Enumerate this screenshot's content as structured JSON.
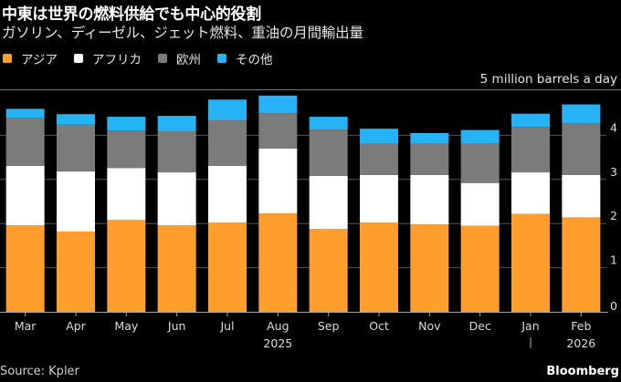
{
  "header": {
    "title": "中東は世界の燃料供給でも中心的役割",
    "subtitle": "ガソリン、ディーゼル、ジェット燃料、重油の月間輸出量"
  },
  "legend": [
    {
      "label": "アジア",
      "color": "#ff9e2c"
    },
    {
      "label": "アフリカ",
      "color": "#ffffff"
    },
    {
      "label": "欧州",
      "color": "#7b7b7b"
    },
    {
      "label": "その他",
      "color": "#26b3f5"
    }
  ],
  "footer": {
    "source": "Source: Kpler",
    "brand": "Bloomberg"
  },
  "chart_data": {
    "type": "bar",
    "stacked": true,
    "title": "中東は世界の燃料供給でも中心的役割",
    "subtitle": "ガソリン、ディーゼル、ジェット燃料、重油の月間輸出量",
    "unit_label": "5 million barrels a day",
    "xlabel": "",
    "ylabel": "",
    "ylim": [
      0,
      5
    ],
    "yticks": [
      0,
      1,
      2,
      3,
      4
    ],
    "y_axis_side": "right",
    "grid": true,
    "legend_position": "top-left",
    "categories": [
      "Mar",
      "Apr",
      "May",
      "Jun",
      "Jul",
      "Aug",
      "Sep",
      "Oct",
      "Nov",
      "Dec",
      "Jan",
      "Feb"
    ],
    "year_labels": [
      {
        "label": "2025",
        "under_category": "Aug"
      },
      {
        "label": "2026",
        "under_category": "Feb"
      }
    ],
    "year_divider_at_category": "Jan",
    "series": [
      {
        "name": "アジア",
        "color": "#ff9e2c",
        "values": [
          1.96,
          1.82,
          2.08,
          1.96,
          2.02,
          2.23,
          1.88,
          2.02,
          1.98,
          1.95,
          2.22,
          2.14
        ]
      },
      {
        "name": "アフリカ",
        "color": "#ffffff",
        "values": [
          1.35,
          1.36,
          1.18,
          1.2,
          1.29,
          1.47,
          1.2,
          1.08,
          1.12,
          0.97,
          0.94,
          0.96
        ]
      },
      {
        "name": "欧州",
        "color": "#7b7b7b",
        "values": [
          1.09,
          1.06,
          0.85,
          0.93,
          1.03,
          0.8,
          1.05,
          0.71,
          0.71,
          0.89,
          1.03,
          1.17
        ]
      },
      {
        "name": "その他",
        "color": "#26b3f5",
        "values": [
          0.2,
          0.24,
          0.31,
          0.35,
          0.47,
          0.4,
          0.29,
          0.34,
          0.24,
          0.31,
          0.3,
          0.43
        ]
      }
    ]
  }
}
